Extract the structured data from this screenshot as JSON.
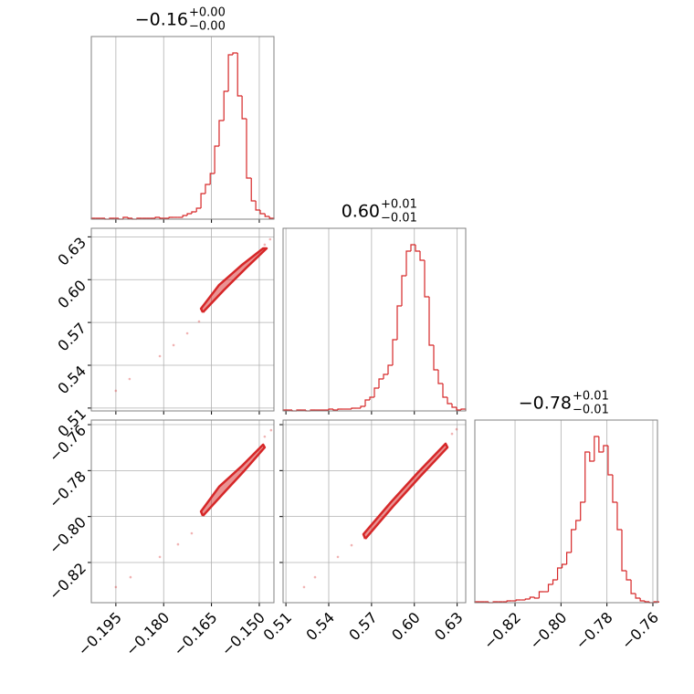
{
  "chart_data": {
    "type": "corner",
    "color": "#d62728",
    "grid": true,
    "hist_ylim": [
      0,
      200
    ],
    "parameters": [
      {
        "title": "−0.16",
        "title_plus": "+0.00",
        "title_minus": "−0.00",
        "lim": [
          -0.2027,
          -0.1454
        ],
        "ticks": [
          {
            "value": -0.195,
            "label": "−0.195"
          },
          {
            "value": -0.18,
            "label": "−0.180"
          },
          {
            "value": -0.165,
            "label": "−0.165"
          },
          {
            "value": -0.15,
            "label": "−0.150"
          }
        ],
        "bins": [
          -0.2027,
          -0.2013,
          -0.1998,
          -0.1984,
          -0.197,
          -0.1955,
          -0.1941,
          -0.1927,
          -0.1912,
          -0.1898,
          -0.1884,
          -0.1869,
          -0.1855,
          -0.1841,
          -0.1826,
          -0.1812,
          -0.1798,
          -0.1783,
          -0.1769,
          -0.1755,
          -0.174,
          -0.1726,
          -0.1712,
          -0.1697,
          -0.1683,
          -0.1669,
          -0.1654,
          -0.164,
          -0.1626,
          -0.1611,
          -0.1597,
          -0.1583,
          -0.1568,
          -0.1554,
          -0.154,
          -0.1525,
          -0.1511,
          -0.1497,
          -0.1482,
          -0.1468,
          -0.1454
        ],
        "counts": [
          1,
          1,
          1,
          0,
          1,
          1,
          0,
          2,
          1,
          0,
          1,
          1,
          1,
          1,
          2,
          1,
          1,
          2,
          2,
          2,
          4,
          6,
          8,
          12,
          28,
          38,
          50,
          80,
          108,
          140,
          180,
          182,
          135,
          110,
          45,
          20,
          10,
          6,
          3,
          1
        ]
      },
      {
        "title": "0.60",
        "title_plus": "+0.01",
        "title_minus": "−0.01",
        "lim": [
          0.508,
          0.636
        ],
        "ticks": [
          0.51,
          0.54,
          0.57,
          {
            "value": 0.6,
            "label": "0.60"
          },
          0.63
        ],
        "bins": [
          0.508,
          0.5112,
          0.5144,
          0.5176,
          0.5208,
          0.524,
          0.5272,
          0.5304,
          0.5336,
          0.5368,
          0.54,
          0.5432,
          0.5464,
          0.5496,
          0.5528,
          0.556,
          0.5592,
          0.5624,
          0.5656,
          0.5688,
          0.572,
          0.5752,
          0.5784,
          0.5816,
          0.5848,
          0.588,
          0.5912,
          0.5944,
          0.5976,
          0.6008,
          0.604,
          0.6072,
          0.6104,
          0.6136,
          0.6168,
          0.62,
          0.6232,
          0.6264,
          0.6296,
          0.6328,
          0.636
        ],
        "counts": [
          1,
          1,
          0,
          1,
          1,
          0,
          1,
          1,
          1,
          1,
          2,
          1,
          2,
          2,
          2,
          3,
          3,
          5,
          12,
          15,
          25,
          35,
          40,
          50,
          78,
          115,
          148,
          175,
          182,
          175,
          165,
          125,
          72,
          45,
          30,
          15,
          8,
          4,
          1,
          2
        ]
      },
      {
        "title": "−0.78",
        "title_plus": "+0.01",
        "title_minus": "−0.01",
        "lim": [
          -0.8375,
          -0.758
        ],
        "ticks": [
          {
            "value": -0.82,
            "label": "−0.82"
          },
          {
            "value": -0.8,
            "label": "−0.80"
          },
          {
            "value": -0.78,
            "label": "−0.78"
          },
          {
            "value": -0.76,
            "label": "−0.76"
          }
        ],
        "bins": [
          -0.8375,
          -0.8355,
          -0.8335,
          -0.8315,
          -0.8295,
          -0.8275,
          -0.8255,
          -0.8235,
          -0.8215,
          -0.8195,
          -0.8175,
          -0.8155,
          -0.8135,
          -0.8115,
          -0.8095,
          -0.8075,
          -0.8055,
          -0.8035,
          -0.8015,
          -0.7995,
          -0.7975,
          -0.7955,
          -0.7935,
          -0.7915,
          -0.7895,
          -0.7875,
          -0.7855,
          -0.7835,
          -0.7815,
          -0.7795,
          -0.7775,
          -0.7755,
          -0.7735,
          -0.7715,
          -0.7695,
          -0.7675,
          -0.7655,
          -0.7635,
          -0.7615,
          -0.7595,
          -0.7575
        ],
        "counts": [
          1,
          1,
          1,
          0,
          1,
          1,
          1,
          2,
          2,
          3,
          3,
          4,
          6,
          5,
          12,
          12,
          20,
          25,
          38,
          42,
          55,
          80,
          90,
          110,
          165,
          155,
          182,
          165,
          172,
          140,
          110,
          80,
          35,
          25,
          10,
          5,
          2,
          1,
          0,
          1
        ]
      }
    ],
    "pairs": [
      {
        "points": {
          "x": [
            -0.195,
            -0.1907,
            -0.1812,
            -0.1769,
            -0.1726,
            -0.1689,
            -0.1483,
            -0.1466
          ],
          "y": [
            0.5221,
            0.5304,
            0.5464,
            0.5541,
            0.5624,
            0.5707,
            0.6245,
            0.6283
          ]
        },
        "contour": {
          "x": [
            -0.1677,
            -0.1612,
            -0.154,
            -0.1477,
            -0.1488,
            -0.1554,
            -0.1626,
            -0.1683,
            -0.1677
          ],
          "y": [
            0.5771,
            0.5925,
            0.6085,
            0.6219,
            0.6219,
            0.6104,
            0.5963,
            0.5797,
            0.5771
          ]
        }
      },
      {
        "points": {
          "x": [
            -0.195,
            -0.1904,
            -0.1812,
            -0.1755,
            -0.1712,
            -0.1483,
            -0.1463
          ],
          "y": [
            -0.8307,
            -0.8264,
            -0.8176,
            -0.8121,
            -0.8073,
            -0.7652,
            -0.7624
          ]
        },
        "contour": {
          "x": [
            -0.1677,
            -0.1612,
            -0.1546,
            -0.1483,
            -0.1488,
            -0.1554,
            -0.1626,
            -0.1683,
            -0.1677
          ],
          "y": [
            -0.7997,
            -0.7898,
            -0.7799,
            -0.7699,
            -0.7687,
            -0.7779,
            -0.787,
            -0.7978,
            -0.7997
          ]
        }
      },
      {
        "points": {
          "x": [
            0.5227,
            0.5304,
            0.5464,
            0.556,
            0.6264,
            0.6296
          ],
          "y": [
            -0.8307,
            -0.8264,
            -0.8176,
            -0.8125,
            -0.764,
            -0.762
          ]
        },
        "contour": {
          "x": [
            0.5656,
            0.5848,
            0.604,
            0.6232,
            0.6219,
            0.6027,
            0.5835,
            0.5643,
            0.5656
          ],
          "y": [
            -0.8097,
            -0.7958,
            -0.7826,
            -0.7699,
            -0.7683,
            -0.7807,
            -0.7938,
            -0.8077,
            -0.8097
          ]
        }
      }
    ]
  }
}
